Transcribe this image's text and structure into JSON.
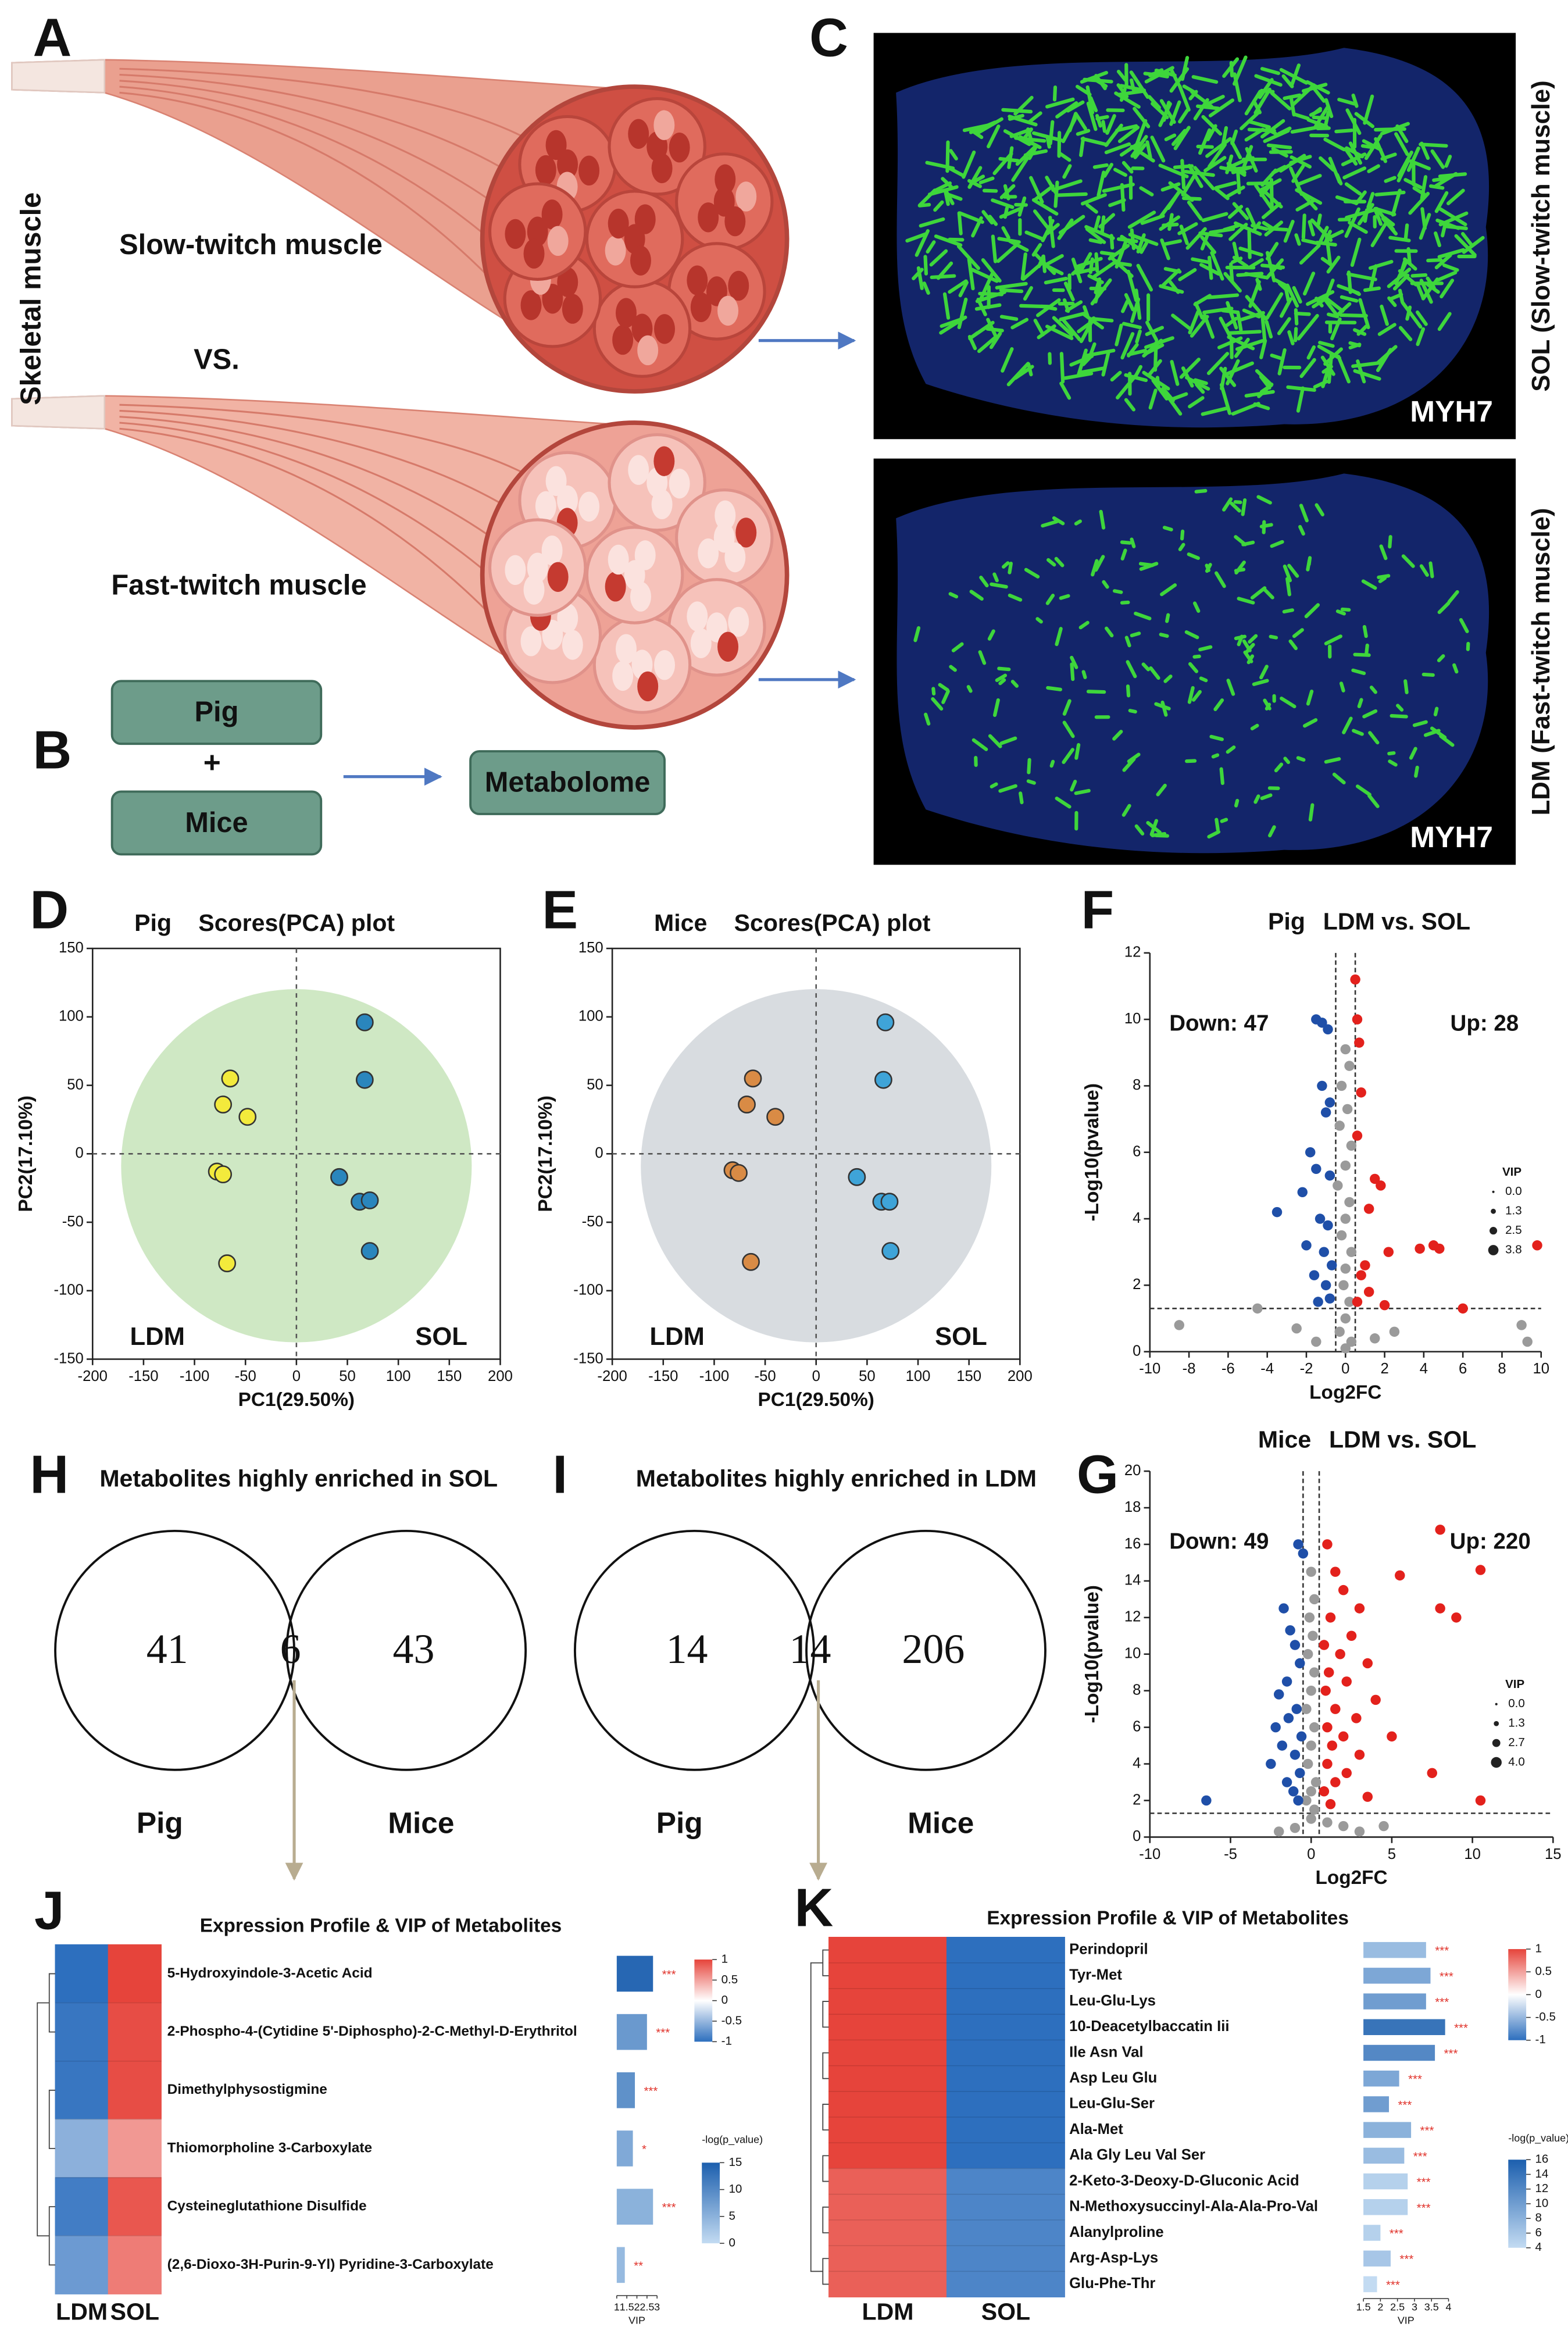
{
  "panel_labels": [
    "A",
    "B",
    "C",
    "D",
    "E",
    "F",
    "G",
    "H",
    "I",
    "J",
    "K"
  ],
  "illustration": {
    "side_label": "Skeletal muscle",
    "slow_label": "Slow-twitch muscle",
    "vs_label": "VS.",
    "fast_label": "Fast-twitch muscle"
  },
  "workflow": {
    "pig": "Pig",
    "plus": "+",
    "mice": "Mice",
    "metabolome": "Metabolome"
  },
  "staining": {
    "top": {
      "stain": "MYH7",
      "side": "SOL (Slow-twitch muscle)"
    },
    "bottom": {
      "stain": "MYH7",
      "side": "LDM (Fast-twitch muscle)"
    }
  },
  "venn": [
    {
      "title": "Metabolites highly enriched in SOL",
      "left_value": 41,
      "center_value": 6,
      "right_value": 43,
      "left_label": "Pig",
      "right_label": "Mice"
    },
    {
      "title": "Metabolites highly enriched in LDM",
      "left_value": 14,
      "center_value": 14,
      "right_value": 206,
      "left_label": "Pig",
      "right_label": "Mice"
    }
  ],
  "chart_data": [
    {
      "type": "scatter",
      "subtitle": "Pig",
      "title": "Scores(PCA) plot",
      "xlabel": "PC1(29.50%)",
      "ylabel": "PC2(17.10%)",
      "xlim": [
        -200,
        200
      ],
      "xticks": [
        -200,
        -150,
        -100,
        -50,
        0,
        50,
        100,
        150,
        200
      ],
      "ylim": [
        -150,
        150
      ],
      "yticks": [
        -150,
        -100,
        -50,
        0,
        50,
        100,
        150
      ],
      "ellipse_color": "#cfe8c4",
      "series": [
        {
          "name": "LDM",
          "color": "#f3ea3c",
          "x": [
            -65,
            -72,
            -48,
            -78,
            -72,
            -68
          ],
          "y": [
            55,
            36,
            27,
            -13,
            -15,
            -80
          ]
        },
        {
          "name": "SOL",
          "color": "#2a86bd",
          "x": [
            67,
            67,
            42,
            62,
            72,
            72
          ],
          "y": [
            96,
            54,
            -17,
            -35,
            -34,
            -71
          ]
        }
      ]
    },
    {
      "type": "scatter",
      "subtitle": "Mice",
      "title": "Scores(PCA) plot",
      "xlabel": "PC1(29.50%)",
      "ylabel": "PC2(17.10%)",
      "xlim": [
        -200,
        200
      ],
      "xticks": [
        -200,
        -150,
        -100,
        -50,
        0,
        50,
        100,
        150,
        200
      ],
      "ylim": [
        -150,
        150
      ],
      "yticks": [
        -150,
        -100,
        -50,
        0,
        50,
        100,
        150
      ],
      "ellipse_color": "#d8dce0",
      "series": [
        {
          "name": "LDM",
          "color": "#d98b45",
          "x": [
            -62,
            -68,
            -40,
            -82,
            -76,
            -64
          ],
          "y": [
            55,
            36,
            27,
            -12,
            -14,
            -79
          ]
        },
        {
          "name": "SOL",
          "color": "#3fa4d8",
          "x": [
            68,
            66,
            40,
            64,
            72,
            73
          ],
          "y": [
            96,
            54,
            -17,
            -35,
            -35,
            -71
          ]
        }
      ]
    },
    {
      "type": "volcano",
      "subtitle": "Pig",
      "title": "LDM vs. SOL",
      "xlabel": "Log2FC",
      "ylabel": "-Log10(pvalue)",
      "xlim": [
        -10,
        10
      ],
      "xticks": [
        -10,
        -8,
        -6,
        -4,
        -2,
        0,
        2,
        4,
        6,
        8,
        10
      ],
      "ylim": [
        0,
        12
      ],
      "yticks": [
        0,
        2,
        4,
        6,
        8,
        10,
        12
      ],
      "annotations": [
        "Down: 47",
        "Up: 28"
      ],
      "size_legend": {
        "title": "VIP",
        "values": [
          {
            "value": 0,
            "label": "0.0"
          },
          1.3,
          2.5,
          3.8
        ]
      },
      "thresholds": {
        "x": [
          -0.5,
          0.5
        ],
        "y": 1.3
      },
      "series": [
        {
          "color": "#9a9a9a",
          "x": [
            0,
            0.2,
            -0.2,
            0.1,
            -0.3,
            0.3,
            0,
            -0.4,
            0.2,
            0,
            -0.2,
            0.3,
            0,
            -0.1,
            0.2,
            0,
            -0.3,
            0.3,
            0,
            -8.5,
            -4.5,
            -2.5,
            2.5,
            9,
            9.3,
            1.5,
            -1.5
          ],
          "y": [
            9.1,
            8.6,
            8,
            7.3,
            6.8,
            6.2,
            5.6,
            5,
            4.5,
            4,
            3.5,
            3,
            2.5,
            2,
            1.5,
            1,
            0.6,
            0.3,
            0.1,
            0.8,
            1.3,
            0.7,
            0.6,
            0.8,
            0.3,
            0.4,
            0.3
          ]
        },
        {
          "color": "#1f4fa8",
          "x": [
            -1.5,
            -1.2,
            -0.9,
            -1.2,
            -0.8,
            -1,
            -1.8,
            -1.5,
            -0.8,
            -2.2,
            -3.5,
            -1.3,
            -0.9,
            -2,
            -1.1,
            -0.7,
            -1.6,
            -1,
            -0.8,
            -1.4
          ],
          "y": [
            10,
            9.9,
            9.7,
            8,
            7.5,
            7.2,
            6,
            5.5,
            5.3,
            4.8,
            4.2,
            4,
            3.8,
            3.2,
            3,
            2.6,
            2.3,
            2,
            1.6,
            1.5
          ]
        },
        {
          "color": "#e3211c",
          "x": [
            0.5,
            0.6,
            0.7,
            0.8,
            0.6,
            1.5,
            1.8,
            1.2,
            4.5,
            4.8,
            3.8,
            9.8,
            2.2,
            1,
            0.8,
            1.2,
            6,
            2,
            0.6
          ],
          "y": [
            11.2,
            10,
            9.3,
            7.8,
            6.5,
            5.2,
            5,
            4.3,
            3.2,
            3.1,
            3.1,
            3.2,
            3,
            2.6,
            2.3,
            1.8,
            1.3,
            1.4,
            1.5
          ]
        }
      ]
    },
    {
      "type": "volcano",
      "subtitle": "Mice",
      "title": "LDM vs. SOL",
      "xlabel": "Log2FC",
      "ylabel": "-Log10(pvalue)",
      "xlim": [
        -10,
        15
      ],
      "xticks": [
        -10,
        -5,
        0,
        5,
        10,
        15
      ],
      "ylim": [
        0,
        20
      ],
      "yticks": [
        0,
        2,
        4,
        6,
        8,
        10,
        12,
        14,
        16,
        18,
        20
      ],
      "annotations": [
        "Down: 49",
        "Up: 220"
      ],
      "size_legend": {
        "title": "VIP",
        "values": [
          {
            "value": 0,
            "label": "0.0"
          },
          1.3,
          2.7,
          {
            "value": 4,
            "label": "4.0"
          }
        ]
      },
      "thresholds": {
        "x": [
          -0.5,
          0.5
        ],
        "y": 1.3
      },
      "series": [
        {
          "color": "#9a9a9a",
          "x": [
            0,
            0.2,
            -0.1,
            0.1,
            -0.2,
            0.2,
            0,
            -0.3,
            0.2,
            0,
            -0.2,
            0.3,
            0,
            -0.3,
            0.2,
            0,
            1,
            -1,
            2,
            4.5,
            3,
            -2
          ],
          "y": [
            14.5,
            13,
            12,
            11,
            10,
            9,
            8,
            7,
            6,
            5,
            4,
            3,
            2.5,
            2,
            1.5,
            1,
            0.8,
            0.5,
            0.6,
            0.6,
            0.3,
            0.3
          ]
        },
        {
          "color": "#1f4fa8",
          "x": [
            -6.5,
            -1.7,
            -1.3,
            -0.8,
            -0.5,
            -1,
            -0.7,
            -1.5,
            -2,
            -0.9,
            -1.4,
            -2.2,
            -0.6,
            -1.8,
            -1,
            -2.5,
            -0.7,
            -1.5,
            -1.1,
            -0.8
          ],
          "y": [
            2,
            12.5,
            11.3,
            16,
            15.5,
            10.5,
            9.5,
            8.5,
            7.8,
            7,
            6.5,
            6,
            5.5,
            5,
            4.5,
            4,
            3.5,
            3,
            2.5,
            2
          ]
        },
        {
          "color": "#e3211c",
          "x": [
            8,
            10.5,
            5.5,
            8,
            9,
            1,
            1.5,
            2,
            3,
            1.2,
            2.5,
            0.8,
            1.8,
            3.5,
            1.1,
            2.2,
            0.9,
            4,
            1.5,
            2.8,
            1,
            2,
            5,
            1.3,
            3,
            1,
            2.2,
            7.5,
            1.5,
            0.8,
            3.5,
            10.5,
            1.2
          ],
          "y": [
            16.8,
            14.6,
            14.3,
            12.5,
            12,
            16,
            14.5,
            13.5,
            12.5,
            12,
            11,
            10.5,
            10,
            9.5,
            9,
            8.5,
            8,
            7.5,
            7,
            6.5,
            6,
            5.5,
            5.5,
            5,
            4.5,
            4,
            3.5,
            3.5,
            3,
            2.5,
            2.2,
            2,
            1.8
          ]
        }
      ]
    },
    {
      "type": "heatmap",
      "title": "Expression Profile & VIP of Metabolites",
      "columns": [
        "LDM",
        "SOL"
      ],
      "rows": [
        "5-Hydroxyindole-3-Acetic Acid",
        "2-Phospho-4-(Cytidine 5'-Diphospho)-2-C-Methyl-D-Erythritol",
        "Dimethylphysostigmine",
        "Thiomorpholine 3-Carboxylate",
        "Cysteineglutathione Disulfide",
        "(2,6-Dioxo-3H-Purin-9-Yl) Pyridine-3-Carboxylate"
      ],
      "values": [
        [
          -1,
          1
        ],
        [
          -0.95,
          0.95
        ],
        [
          -0.95,
          0.95
        ],
        [
          -0.55,
          0.55
        ],
        [
          -0.9,
          0.9
        ],
        [
          -0.7,
          0.7
        ]
      ],
      "colorscale": {
        "colors": [
          "#2d6fbe",
          "#ffffff",
          "#e6443b"
        ],
        "zlim": [
          -1,
          1
        ],
        "ticks": [
          1,
          0.5,
          0,
          -0.5,
          -1
        ]
      },
      "vip": {
        "label": "VIP",
        "xlim": [
          1,
          3
        ],
        "xticks": [
          1,
          1.5,
          2,
          2.5,
          3
        ],
        "values": [
          2.8,
          2.5,
          1.9,
          1.8,
          2.8,
          1.4
        ],
        "significance": [
          "***",
          "***",
          "***",
          "*",
          "***",
          "**"
        ],
        "color_title": "-log(p_value)",
        "color_lim": [
          0,
          15
        ],
        "color_ticks": [
          15,
          10,
          5,
          0
        ],
        "neg_log_p": [
          14,
          8,
          9,
          6,
          5,
          4
        ],
        "colors": [
          "#c3dbf2",
          "#1c5fae"
        ]
      }
    },
    {
      "type": "heatmap",
      "title": "Expression Profile & VIP of Metabolites",
      "columns": [
        "LDM",
        "SOL"
      ],
      "rows": [
        "Perindopril",
        "Tyr-Met",
        "Leu-Glu-Lys",
        "10-Deacetylbaccatin Iii",
        "Ile Asn Val",
        "Asp Leu Glu",
        "Leu-Glu-Ser",
        "Ala-Met",
        "Ala Gly Leu Val Ser",
        "2-Keto-3-Deoxy-D-Gluconic Acid",
        "N-Methoxysuccinyl-Ala-Ala-Pro-Val",
        "Alanylproline",
        "Arg-Asp-Lys",
        "Glu-Phe-Thr"
      ],
      "values": [
        [
          1,
          -1
        ],
        [
          1,
          -1
        ],
        [
          1,
          -1
        ],
        [
          1,
          -1
        ],
        [
          1,
          -1
        ],
        [
          1,
          -1
        ],
        [
          1,
          -1
        ],
        [
          1,
          -1
        ],
        [
          1,
          -1
        ],
        [
          0.85,
          -0.85
        ],
        [
          0.85,
          -0.85
        ],
        [
          0.85,
          -0.85
        ],
        [
          0.85,
          -0.85
        ],
        [
          0.85,
          -0.85
        ]
      ],
      "colorscale": {
        "colors": [
          "#2d6fbe",
          "#ffffff",
          "#e6443b"
        ],
        "zlim": [
          -1,
          1
        ],
        "ticks": [
          1,
          0.5,
          0,
          -0.5,
          -1
        ]
      },
      "vip": {
        "label": "VIP",
        "xlim": [
          1.5,
          4
        ],
        "xticks": [
          1.5,
          2,
          2.5,
          3,
          3.5,
          4
        ],
        "values": [
          3.34,
          3.47,
          3.34,
          3.9,
          3.6,
          2.55,
          2.25,
          2.9,
          2.7,
          2.8,
          2.8,
          2,
          2.3,
          1.9
        ],
        "significance": [
          "***",
          "***",
          "***",
          "***",
          "***",
          "***",
          "***",
          "***",
          "***",
          "***",
          "***",
          "***",
          "***",
          "***"
        ],
        "color_title": "-log(p_value)",
        "color_lim": [
          4,
          16
        ],
        "color_ticks": [
          16,
          14,
          12,
          10,
          8,
          6,
          4
        ],
        "neg_log_p": [
          7,
          9,
          10,
          14,
          12,
          9,
          10,
          8,
          7,
          5,
          5,
          5,
          6,
          4
        ],
        "colors": [
          "#c3dbf2",
          "#1c5fae"
        ]
      }
    }
  ]
}
